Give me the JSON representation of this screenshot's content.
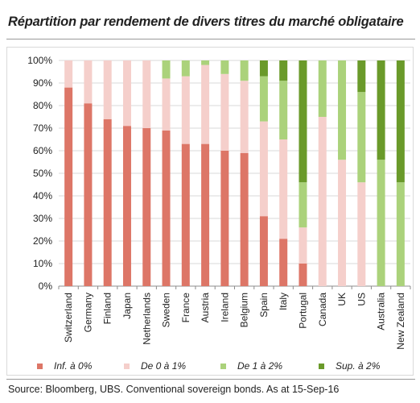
{
  "title": "Répartition par rendement de divers titres du marché obligataire",
  "source": "Source:  Bloomberg, UBS. Conventional sovereign bonds. As at 15-Sep-16",
  "colors": {
    "inf0": "#dd7667",
    "de0a1": "#f5cfcb",
    "de1a2": "#abd27b",
    "sup2": "#6a9a2a",
    "grid": "#d9d9d9",
    "axis": "#8c8c8c"
  },
  "chart_data": {
    "type": "bar",
    "stacked": true,
    "categories": [
      "Switzerland",
      "Germany",
      "Finland",
      "Japan",
      "Netherlands",
      "Sweden",
      "France",
      "Austria",
      "Ireland",
      "Belgium",
      "Spain",
      "Italy",
      "Portugal",
      "Canada",
      "UK",
      "US",
      "Australia",
      "New Zealand"
    ],
    "yticks": [
      "0%",
      "10%",
      "20%",
      "30%",
      "40%",
      "50%",
      "60%",
      "70%",
      "80%",
      "90%",
      "100%"
    ],
    "ylim": [
      0,
      100
    ],
    "grid": true,
    "legend_position": "bottom",
    "series": [
      {
        "name": "Inf. à  0%",
        "color": "#dd7667",
        "values": [
          88,
          81,
          74,
          71,
          70,
          69,
          63,
          63,
          60,
          59,
          31,
          21,
          10,
          0,
          0,
          0,
          0,
          0
        ]
      },
      {
        "name": "De 0 à 1%",
        "color": "#f5cfcb",
        "values": [
          12,
          19,
          26,
          29,
          30,
          23,
          30,
          35,
          34,
          32,
          42,
          44,
          16,
          75,
          56,
          46,
          0,
          0
        ]
      },
      {
        "name": "De 1 à 2%",
        "color": "#abd27b",
        "values": [
          0,
          0,
          0,
          0,
          0,
          8,
          7,
          2,
          6,
          9,
          20,
          26,
          20,
          25,
          44,
          40,
          56,
          46
        ]
      },
      {
        "name": "Sup. à 2%",
        "color": "#6a9a2a",
        "values": [
          0,
          0,
          0,
          0,
          0,
          0,
          0,
          0,
          0,
          0,
          7,
          9,
          54,
          0,
          0,
          14,
          44,
          54
        ]
      }
    ]
  }
}
